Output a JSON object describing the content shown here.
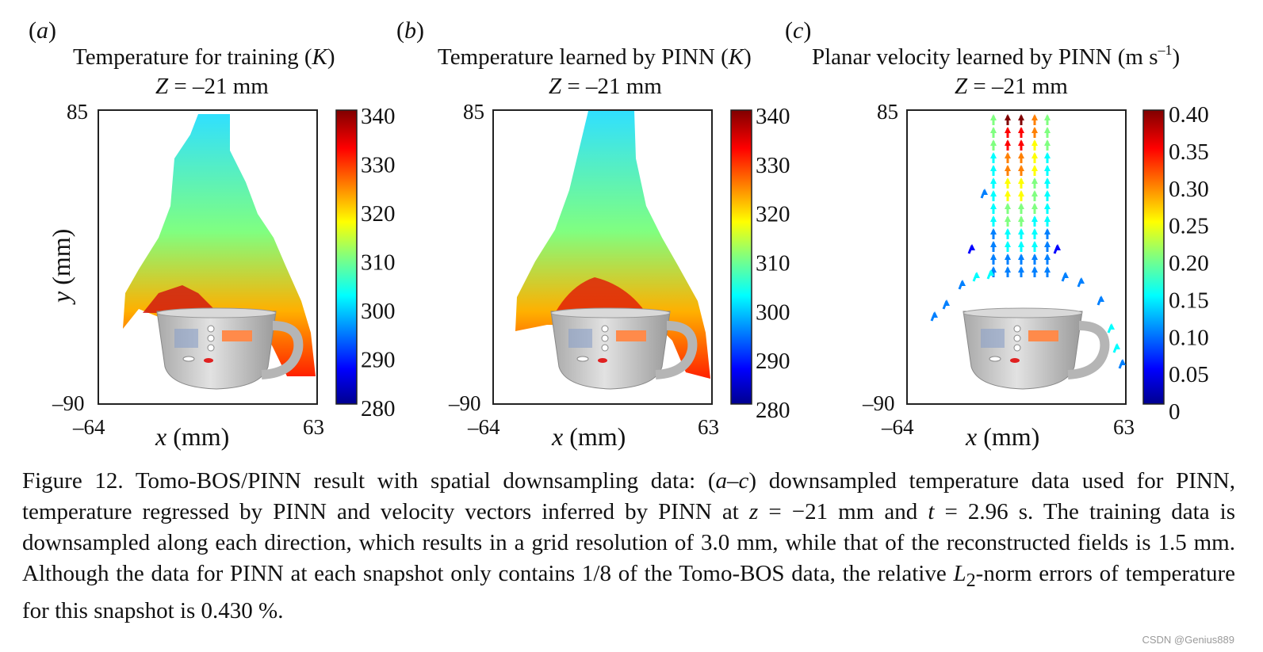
{
  "panels": [
    {
      "letter": "a",
      "title": "Temperature for training",
      "unit": "K",
      "subtitle_var": "Z",
      "subtitle_rest": " = –21 mm",
      "x_min": "–64",
      "x_max": "63",
      "y_min": "–90",
      "y_max": "85",
      "xlabel": "x",
      "xlabel_unit": " (mm)",
      "ylabel": "y",
      "ylabel_unit": " (mm)",
      "colorbar_ticks": [
        "340",
        "330",
        "320",
        "310",
        "300",
        "290",
        "280"
      ]
    },
    {
      "letter": "b",
      "title": "Temperature learned by PINN",
      "unit": "K",
      "subtitle_var": "Z",
      "subtitle_rest": " = –21 mm",
      "x_min": "–64",
      "x_max": "63",
      "y_min": "–90",
      "y_max": "85",
      "xlabel": "x",
      "xlabel_unit": " (mm)",
      "colorbar_ticks": [
        "340",
        "330",
        "320",
        "310",
        "300",
        "290",
        "280"
      ]
    },
    {
      "letter": "c",
      "title": "Planar velocity learned by PINN",
      "unit": "(m s",
      "unit_sup": "–1",
      "unit_close": ")",
      "subtitle_var": "Z",
      "subtitle_rest": " = –21 mm",
      "x_min": "–64",
      "x_max": "63",
      "y_min": "–90",
      "y_max": "85",
      "xlabel": "x",
      "xlabel_unit": " (mm)",
      "colorbar_ticks": [
        "0.40",
        "0.35",
        "0.30",
        "0.25",
        "0.20",
        "0.15",
        "0.10",
        "0.05",
        "0"
      ]
    }
  ],
  "caption": {
    "p1": "Figure 12. Tomo-BOS/PINN result with spatial downsampling data: (",
    "p1_it": "a–c",
    "p2": ") downsampled temperature data used for PINN, temperature regressed by PINN and velocity vectors inferred by PINN at ",
    "z_var": "z",
    "p3": " = −21 mm and ",
    "t_var": "t",
    "p4": " = 2.96 s. The training data is downsampled along each direction, which results in a grid resolution of 3.0 mm, while that of the reconstructed fields is 1.5 mm. Although the data for PINN at each snapshot only contains 1/8 of the Tomo-BOS data, the relative ",
    "l_var": "L",
    "l_sub": "2",
    "p5": "-norm errors of temperature for this snapshot is 0.430 %."
  },
  "watermark": "CSDN @Genius889",
  "colors": {
    "jet": [
      "#00008f",
      "#0000ff",
      "#0080ff",
      "#00ffff",
      "#80ff80",
      "#ffff00",
      "#ff8000",
      "#ff0000",
      "#800000"
    ]
  }
}
